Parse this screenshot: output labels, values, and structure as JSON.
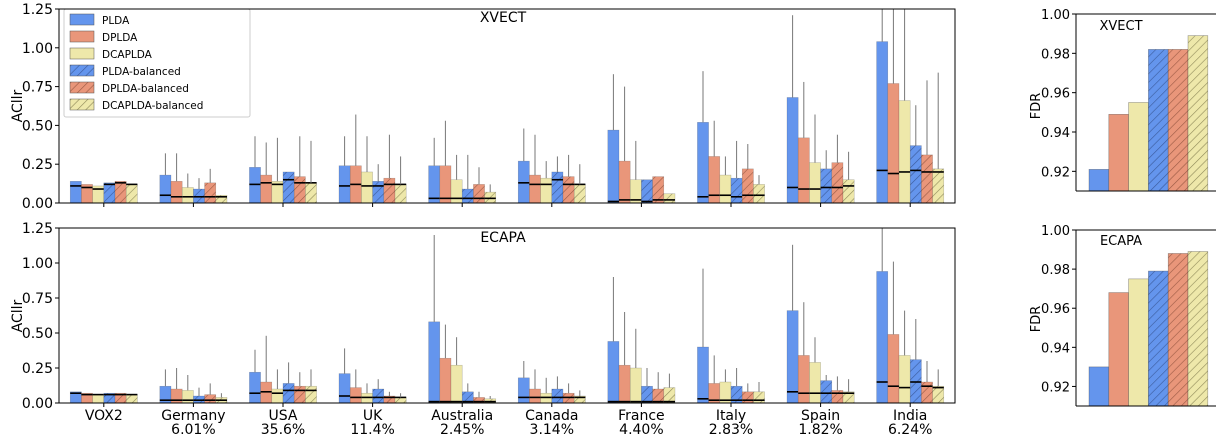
{
  "colors": {
    "PLDA": "#6495ED",
    "DPLDA": "#E9967A",
    "DCAPLDA": "#EEE8AA"
  },
  "chart_data": [
    {
      "type": "bar",
      "title": "XVECT",
      "ylabel": "ACllr",
      "ylim": [
        0,
        1.25
      ],
      "yticks": [
        "0.00",
        "0.25",
        "0.50",
        "0.75",
        "1.00",
        "1.25"
      ],
      "categories": [
        "VOX2",
        "Germany",
        "USA",
        "UK",
        "Australia",
        "Canada",
        "France",
        "Italy",
        "Spain",
        "India"
      ],
      "category_sublabels": [
        "",
        "6.01%",
        "35.6%",
        "11.4%",
        "2.45%",
        "3.14%",
        "4.40%",
        "2.83%",
        "1.82%",
        "6.24%"
      ],
      "legend": {
        "position": "top-left",
        "entries": [
          "PLDA",
          "DPLDA",
          "DCAPLDA",
          "PLDA-balanced",
          "DPLDA-balanced",
          "DCAPLDA-balanced"
        ]
      },
      "series": [
        {
          "name": "PLDA",
          "values": [
            0.14,
            0.18,
            0.23,
            0.24,
            0.24,
            0.27,
            0.47,
            0.52,
            0.68,
            1.04
          ],
          "min_values": [
            0.11,
            0.05,
            0.12,
            0.11,
            0.03,
            0.13,
            0.01,
            0.04,
            0.1,
            0.21
          ],
          "err_hi": [
            0.14,
            0.32,
            0.43,
            0.43,
            0.42,
            0.48,
            0.83,
            0.85,
            1.21,
            1.25
          ]
        },
        {
          "name": "DPLDA",
          "values": [
            0.12,
            0.14,
            0.18,
            0.24,
            0.24,
            0.18,
            0.27,
            0.3,
            0.42,
            0.77
          ],
          "min_values": [
            0.1,
            0.04,
            0.13,
            0.12,
            0.03,
            0.12,
            0.02,
            0.05,
            0.09,
            0.19
          ],
          "err_hi": [
            0.12,
            0.32,
            0.39,
            0.57,
            0.53,
            0.44,
            0.75,
            0.53,
            0.78,
            1.25
          ]
        },
        {
          "name": "DCAPLDA",
          "values": [
            0.11,
            0.1,
            0.14,
            0.2,
            0.15,
            0.16,
            0.15,
            0.18,
            0.26,
            0.66
          ],
          "min_values": [
            0.09,
            0.04,
            0.12,
            0.11,
            0.03,
            0.12,
            0.02,
            0.05,
            0.09,
            0.2
          ],
          "err_hi": [
            0.11,
            0.19,
            0.42,
            0.43,
            0.31,
            0.27,
            0.4,
            0.3,
            0.57,
            1.25
          ]
        },
        {
          "name": "PLDA-balanced",
          "values": [
            0.13,
            0.09,
            0.2,
            0.14,
            0.09,
            0.2,
            0.15,
            0.16,
            0.22,
            0.37
          ],
          "min_values": [
            0.12,
            0.04,
            0.15,
            0.11,
            0.03,
            0.15,
            0.01,
            0.04,
            0.1,
            0.21
          ],
          "err_hi": [
            0.13,
            0.16,
            0.2,
            0.25,
            0.31,
            0.3,
            0.15,
            0.4,
            0.34,
            0.63
          ]
        },
        {
          "name": "DPLDA-balanced",
          "values": [
            0.14,
            0.13,
            0.17,
            0.16,
            0.12,
            0.17,
            0.17,
            0.22,
            0.26,
            0.31
          ],
          "min_values": [
            0.13,
            0.04,
            0.13,
            0.12,
            0.03,
            0.12,
            0.02,
            0.05,
            0.1,
            0.2
          ],
          "err_hi": [
            0.14,
            0.22,
            0.43,
            0.44,
            0.23,
            0.31,
            0.17,
            0.38,
            0.44,
            0.79
          ]
        },
        {
          "name": "DCAPLDA-balanced",
          "values": [
            0.12,
            0.05,
            0.13,
            0.12,
            0.07,
            0.12,
            0.06,
            0.12,
            0.15,
            0.22
          ],
          "min_values": [
            0.12,
            0.04,
            0.13,
            0.12,
            0.03,
            0.12,
            0.02,
            0.05,
            0.11,
            0.2
          ],
          "err_hi": [
            0.12,
            0.05,
            0.4,
            0.3,
            0.12,
            0.25,
            0.06,
            0.18,
            0.33,
            0.84
          ]
        }
      ]
    },
    {
      "type": "bar",
      "title": "ECAPA",
      "ylabel": "ACllr",
      "ylim": [
        0,
        1.25
      ],
      "yticks": [
        "0.00",
        "0.25",
        "0.50",
        "0.75",
        "1.00",
        "1.25"
      ],
      "categories": [
        "VOX2",
        "Germany",
        "USA",
        "UK",
        "Australia",
        "Canada",
        "France",
        "Italy",
        "Spain",
        "India"
      ],
      "category_sublabels": [
        "",
        "6.01%",
        "35.6%",
        "11.4%",
        "2.45%",
        "3.14%",
        "4.40%",
        "2.83%",
        "1.82%",
        "6.24%"
      ],
      "series": [
        {
          "name": "PLDA",
          "values": [
            0.08,
            0.12,
            0.22,
            0.21,
            0.58,
            0.18,
            0.44,
            0.4,
            0.66,
            0.94
          ],
          "min_values": [
            0.07,
            0.02,
            0.07,
            0.05,
            0.01,
            0.04,
            0.01,
            0.03,
            0.08,
            0.15
          ],
          "err_hi": [
            0.08,
            0.24,
            0.38,
            0.39,
            1.2,
            0.3,
            0.9,
            0.96,
            1.13,
            1.25
          ]
        },
        {
          "name": "DPLDA",
          "values": [
            0.07,
            0.1,
            0.15,
            0.11,
            0.32,
            0.1,
            0.27,
            0.14,
            0.34,
            0.49
          ],
          "min_values": [
            0.06,
            0.02,
            0.08,
            0.04,
            0.01,
            0.04,
            0.01,
            0.02,
            0.07,
            0.12
          ],
          "err_hi": [
            0.07,
            0.25,
            0.48,
            0.24,
            0.56,
            0.24,
            0.65,
            0.34,
            0.72,
            1.01
          ]
        },
        {
          "name": "DCAPLDA",
          "values": [
            0.06,
            0.09,
            0.1,
            0.07,
            0.27,
            0.07,
            0.25,
            0.15,
            0.29,
            0.34
          ],
          "min_values": [
            0.06,
            0.02,
            0.07,
            0.04,
            0.01,
            0.04,
            0.01,
            0.02,
            0.07,
            0.11
          ],
          "err_hi": [
            0.06,
            0.2,
            0.24,
            0.14,
            0.47,
            0.18,
            0.53,
            0.24,
            0.47,
            0.66
          ]
        },
        {
          "name": "PLDA-balanced",
          "values": [
            0.07,
            0.05,
            0.14,
            0.1,
            0.08,
            0.1,
            0.12,
            0.12,
            0.16,
            0.31
          ],
          "min_values": [
            0.06,
            0.02,
            0.09,
            0.04,
            0.01,
            0.04,
            0.01,
            0.02,
            0.07,
            0.15
          ],
          "err_hi": [
            0.07,
            0.11,
            0.29,
            0.17,
            0.14,
            0.19,
            0.25,
            0.25,
            0.2,
            0.6
          ]
        },
        {
          "name": "DPLDA-balanced",
          "values": [
            0.07,
            0.06,
            0.12,
            0.05,
            0.04,
            0.07,
            0.1,
            0.08,
            0.09,
            0.15
          ],
          "min_values": [
            0.06,
            0.02,
            0.09,
            0.04,
            0.01,
            0.04,
            0.01,
            0.02,
            0.07,
            0.12
          ],
          "err_hi": [
            0.07,
            0.14,
            0.22,
            0.08,
            0.08,
            0.14,
            0.22,
            0.14,
            0.19,
            0.3
          ]
        },
        {
          "name": "DCAPLDA-balanced",
          "values": [
            0.06,
            0.04,
            0.12,
            0.04,
            0.03,
            0.05,
            0.11,
            0.08,
            0.08,
            0.12
          ],
          "min_values": [
            0.06,
            0.02,
            0.09,
            0.04,
            0.01,
            0.04,
            0.01,
            0.02,
            0.07,
            0.11
          ],
          "err_hi": [
            0.06,
            0.07,
            0.24,
            0.07,
            0.05,
            0.09,
            0.21,
            0.15,
            0.17,
            0.24
          ]
        }
      ]
    },
    {
      "type": "bar",
      "title": "XVECT",
      "ylabel": "FDR",
      "ylim": [
        0.91,
        1.0
      ],
      "yticks": [
        "0.92",
        "0.94",
        "0.96",
        "0.98",
        "1.00"
      ],
      "series_names": [
        "PLDA",
        "DPLDA",
        "DCAPLDA",
        "PLDA-balanced",
        "DPLDA-balanced",
        "DCAPLDA-balanced"
      ],
      "values": [
        0.921,
        0.949,
        0.955,
        0.982,
        0.982,
        0.989
      ]
    },
    {
      "type": "bar",
      "title": "ECAPA",
      "ylabel": "FDR",
      "ylim": [
        0.91,
        1.0
      ],
      "yticks": [
        "0.92",
        "0.94",
        "0.96",
        "0.98",
        "1.00"
      ],
      "series_names": [
        "PLDA",
        "DPLDA",
        "DCAPLDA",
        "PLDA-balanced",
        "DPLDA-balanced",
        "DCAPLDA-balanced"
      ],
      "values": [
        0.93,
        0.968,
        0.975,
        0.979,
        0.988,
        0.989
      ]
    }
  ]
}
